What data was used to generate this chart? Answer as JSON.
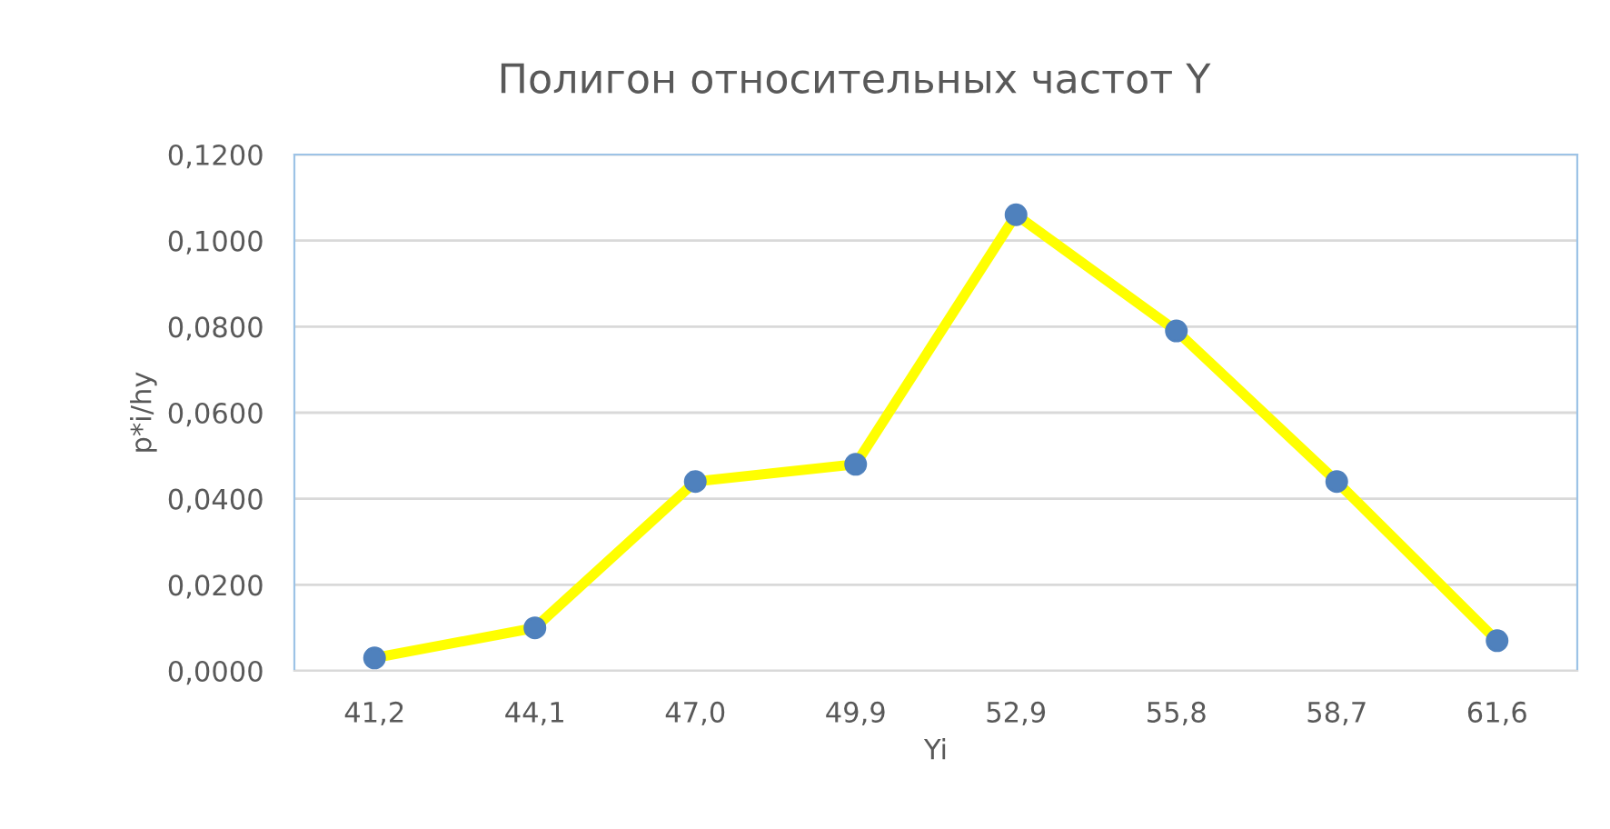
{
  "chart_data": {
    "type": "line",
    "title": "Полигон относительных частот Y",
    "xlabel": "Yi",
    "ylabel": "p*i/hy",
    "categories": [
      "41,2",
      "44,1",
      "47,0",
      "49,9",
      "52,9",
      "55,8",
      "58,7",
      "61,6"
    ],
    "series": [
      {
        "color": "#ffff00",
        "values": [
          0.003,
          0.01,
          0.044,
          0.048,
          0.106,
          0.079,
          0.044,
          0.007
        ]
      }
    ],
    "marker": "circle",
    "line_style": "solid",
    "grid": "y",
    "ylim": [
      0,
      0.12
    ],
    "yticks": [
      {
        "value": 0,
        "label": "0,0000"
      },
      {
        "value": 0.02,
        "label": "0,0200"
      },
      {
        "value": 0.04,
        "label": "0,0400"
      },
      {
        "value": 0.06,
        "label": "0,0600"
      },
      {
        "value": 0.08,
        "label": "0,0800"
      },
      {
        "value": 0.1,
        "label": "0,1000"
      },
      {
        "value": 0.12,
        "label": "0,1200"
      }
    ]
  }
}
